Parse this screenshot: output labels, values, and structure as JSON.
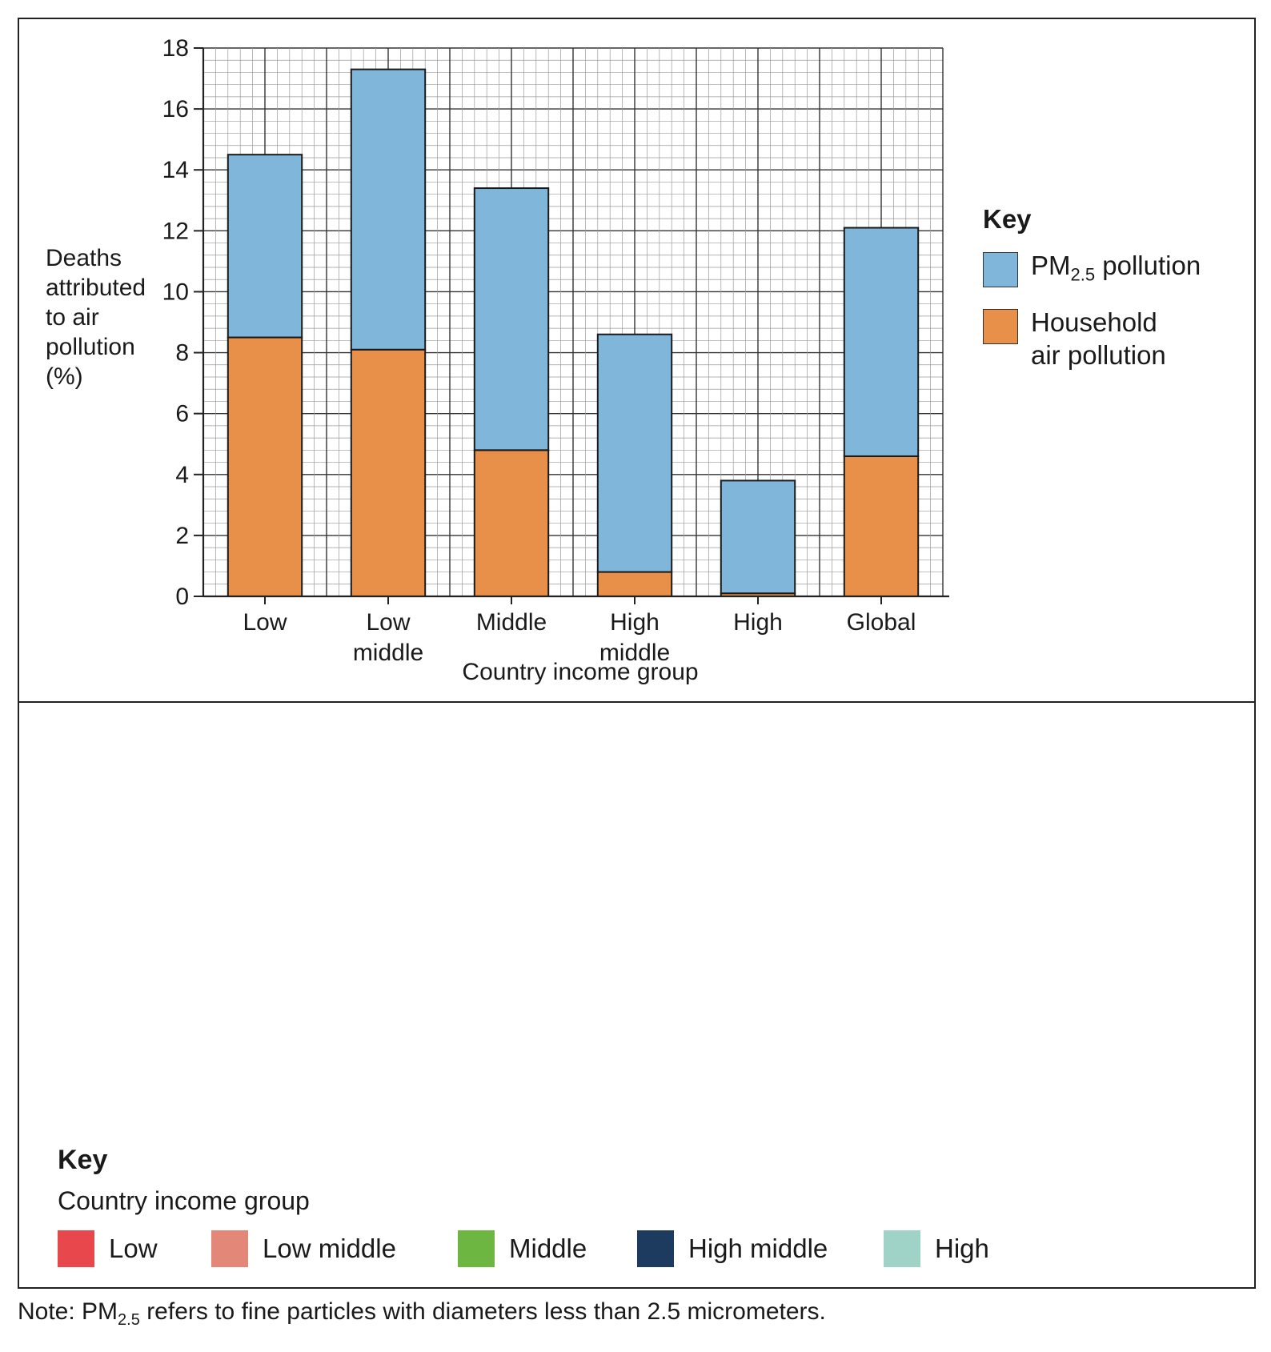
{
  "chart_data": {
    "type": "bar",
    "stacked": true,
    "categories": [
      "Low",
      "Low\nmiddle",
      "Middle",
      "High\nmiddle",
      "High",
      "Global"
    ],
    "series": [
      {
        "name": "Household air pollution",
        "color": "#E8904A",
        "values": [
          8.5,
          8.1,
          4.8,
          0.8,
          0.1,
          4.6
        ]
      },
      {
        "name": "PM2.5 pollution",
        "color": "#7FB6DA",
        "values": [
          6.0,
          9.2,
          8.6,
          7.8,
          3.7,
          7.5
        ]
      }
    ],
    "ylim": [
      0,
      18
    ],
    "yticks": [
      0,
      2,
      4,
      6,
      8,
      10,
      12,
      14,
      16,
      18
    ],
    "ylabel": "Deaths\nattributed\nto air\npollution\n(%)",
    "xlabel": "Country income group",
    "grid": true,
    "legend": {
      "title": "Key",
      "position": "right"
    }
  },
  "chart_key": {
    "title": "Key",
    "pm_label_main": "PM",
    "pm_label_sub": "2.5",
    "pm_label_rest": " pollution",
    "household_label": "Household\nair pollution"
  },
  "map": {
    "key_title": "Key",
    "key_subtitle": "Country income group",
    "legend": [
      {
        "label": "Low",
        "color": "#E8474B"
      },
      {
        "label": "Low middle",
        "color": "#E38779"
      },
      {
        "label": "Middle",
        "color": "#6DB642"
      },
      {
        "label": "High middle",
        "color": "#1C3B5E"
      },
      {
        "label": "High",
        "color": "#9FD3C7"
      }
    ],
    "no_data_color": "#AAAAAA"
  },
  "note": {
    "prefix": "Note: PM",
    "sub": "2.5",
    "rest": " refers to fine particles with diameters less than 2.5 micrometers."
  }
}
